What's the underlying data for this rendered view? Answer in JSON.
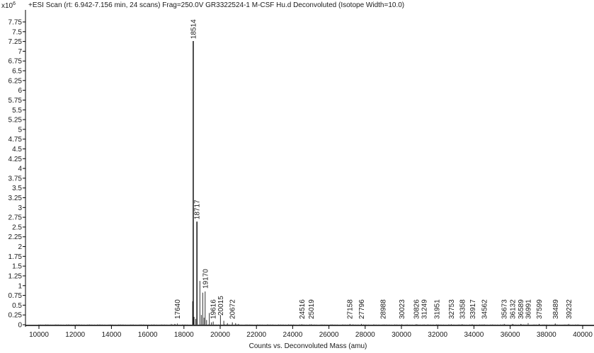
{
  "header": {
    "y_multiplier": "x10",
    "y_multiplier_exp": "6",
    "title": "+ESI Scan (rt: 6.942-7.156 min, 24 scans) Frag=250.0V GR3322524-1 M-CSF Hu.d  Deconvoluted (Isotope Width=10.0)"
  },
  "chart_data": {
    "type": "bar",
    "title": "+ESI Scan (rt: 6.942-7.156 min, 24 scans) Frag=250.0V GR3322524-1 M-CSF Hu.d  Deconvoluted (Isotope Width=10.0)",
    "xlabel": "Counts vs. Deconvoluted Mass (amu)",
    "ylabel": "x10^6",
    "xlim": [
      9300,
      40300
    ],
    "ylim": [
      0,
      7.9
    ],
    "grid": false,
    "legend": "none",
    "x_ticks": [
      10000,
      12000,
      14000,
      16000,
      18000,
      20000,
      22000,
      24000,
      26000,
      28000,
      30000,
      32000,
      34000,
      36000,
      38000,
      40000
    ],
    "y_ticks": [
      "0",
      "0.25",
      "0.5",
      "0.75",
      "1",
      "1.25",
      "1.5",
      "1.75",
      "2",
      "2.25",
      "2.5",
      "2.75",
      "3",
      "3.25",
      "3.5",
      "3.75",
      "4",
      "4.25",
      "4.5",
      "4.75",
      "5",
      "5.25",
      "5.5",
      "5.75",
      "6",
      "6.25",
      "6.5",
      "6.75",
      "7",
      "7.25",
      "7.5",
      "7.75"
    ],
    "labeled_peaks": [
      {
        "mass": 17640,
        "intensity": 0.03
      },
      {
        "mass": 18514,
        "intensity": 7.26
      },
      {
        "mass": 18717,
        "intensity": 2.64
      },
      {
        "mass": 19170,
        "intensity": 0.85
      },
      {
        "mass": 19616,
        "intensity": 0.08
      },
      {
        "mass": 20015,
        "intensity": 0.25
      },
      {
        "mass": 20672,
        "intensity": 0.06
      },
      {
        "mass": 24516,
        "intensity": 0.01
      },
      {
        "mass": 25019,
        "intensity": 0.01
      },
      {
        "mass": 27158,
        "intensity": 0.02
      },
      {
        "mass": 27796,
        "intensity": 0.02
      },
      {
        "mass": 28988,
        "intensity": 0.01
      },
      {
        "mass": 30023,
        "intensity": 0.01
      },
      {
        "mass": 30826,
        "intensity": 0.01
      },
      {
        "mass": 31249,
        "intensity": 0.01
      },
      {
        "mass": 31951,
        "intensity": 0.01
      },
      {
        "mass": 32753,
        "intensity": 0.01
      },
      {
        "mass": 33358,
        "intensity": 0.01
      },
      {
        "mass": 33917,
        "intensity": 0.01
      },
      {
        "mass": 34562,
        "intensity": 0.01
      },
      {
        "mass": 35673,
        "intensity": 0.02
      },
      {
        "mass": 36132,
        "intensity": 0.02
      },
      {
        "mass": 36589,
        "intensity": 0.02
      },
      {
        "mass": 36991,
        "intensity": 0.04
      },
      {
        "mass": 37599,
        "intensity": 0.02
      },
      {
        "mass": 38489,
        "intensity": 0.03
      },
      {
        "mass": 39232,
        "intensity": 0.02
      }
    ],
    "unlabeled_peaks": [
      {
        "mass": 18480,
        "intensity": 0.6
      },
      {
        "mass": 18560,
        "intensity": 0.2
      },
      {
        "mass": 18650,
        "intensity": 0.15
      },
      {
        "mass": 18880,
        "intensity": 1.12
      },
      {
        "mass": 18960,
        "intensity": 0.25
      },
      {
        "mass": 19040,
        "intensity": 0.82
      },
      {
        "mass": 19110,
        "intensity": 0.18
      },
      {
        "mass": 19250,
        "intensity": 0.12
      },
      {
        "mass": 19400,
        "intensity": 0.3
      },
      {
        "mass": 19520,
        "intensity": 0.06
      },
      {
        "mass": 20200,
        "intensity": 0.1
      },
      {
        "mass": 20400,
        "intensity": 0.04
      },
      {
        "mass": 20850,
        "intensity": 0.04
      },
      {
        "mass": 21000,
        "intensity": 0.02
      },
      {
        "mass": 17300,
        "intensity": 0.02
      },
      {
        "mass": 17500,
        "intensity": 0.02
      }
    ]
  }
}
